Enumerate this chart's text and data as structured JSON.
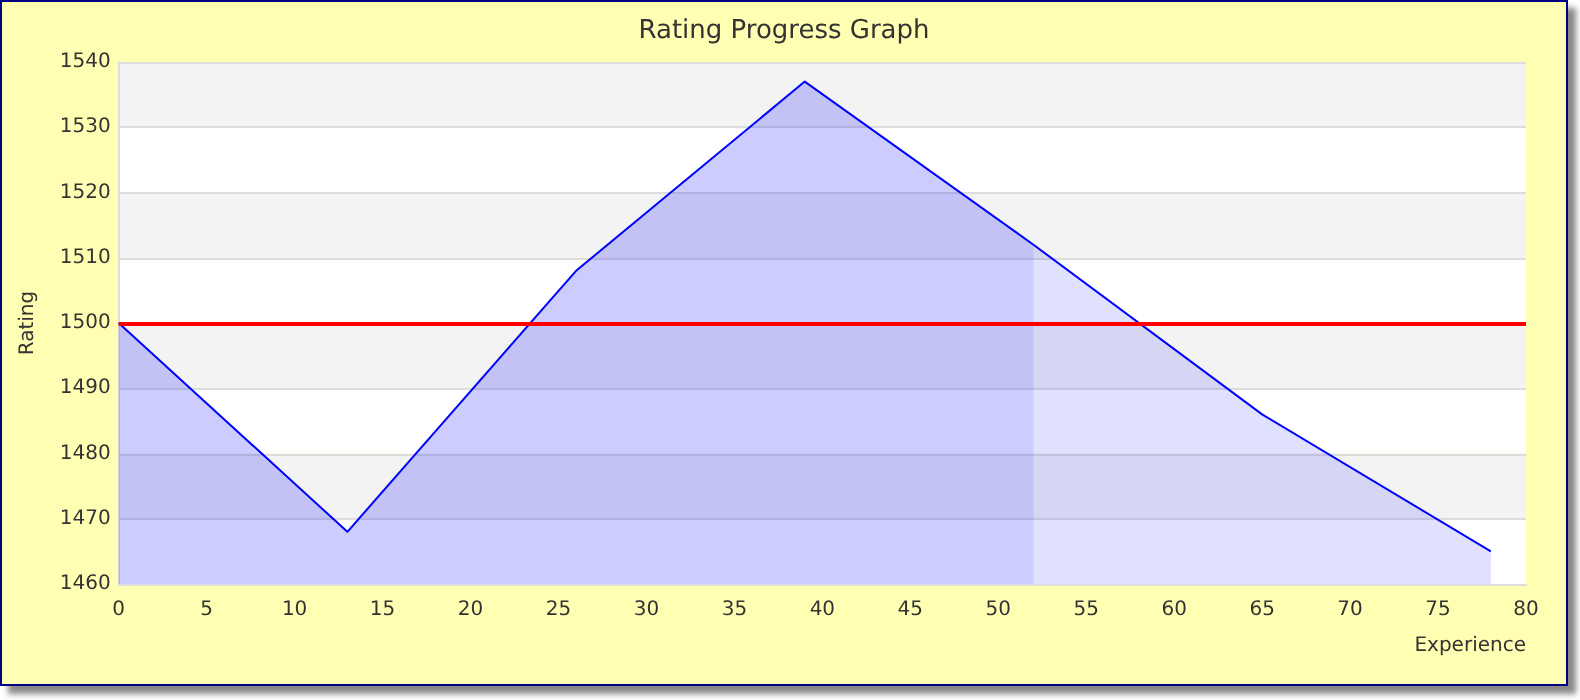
{
  "chart_data": {
    "type": "area",
    "title": "Rating Progress Graph",
    "xlabel": "Experience",
    "ylabel": "Rating",
    "series": [
      {
        "color": "#0000ff",
        "x": [
          0,
          13,
          26,
          39,
          52
        ],
        "values": [
          1500,
          1468,
          1508,
          1537,
          1512
        ]
      },
      {
        "color": "#0000ff",
        "x": [
          52,
          65,
          78
        ],
        "values": [
          1512,
          1486,
          1465
        ]
      }
    ],
    "xlim": [
      0,
      80
    ],
    "xticks": [
      0,
      5,
      10,
      15,
      20,
      25,
      30,
      35,
      40,
      45,
      50,
      55,
      60,
      65,
      70,
      75,
      80
    ],
    "ylim": [
      1460,
      1540
    ],
    "yticks": [
      1460,
      1470,
      1480,
      1490,
      1500,
      1510,
      1520,
      1530,
      1540
    ],
    "ref_lines": [
      {
        "axis": "y",
        "value": 1500,
        "color": "#ff0000"
      }
    ],
    "grid": "y",
    "marker": "none"
  }
}
